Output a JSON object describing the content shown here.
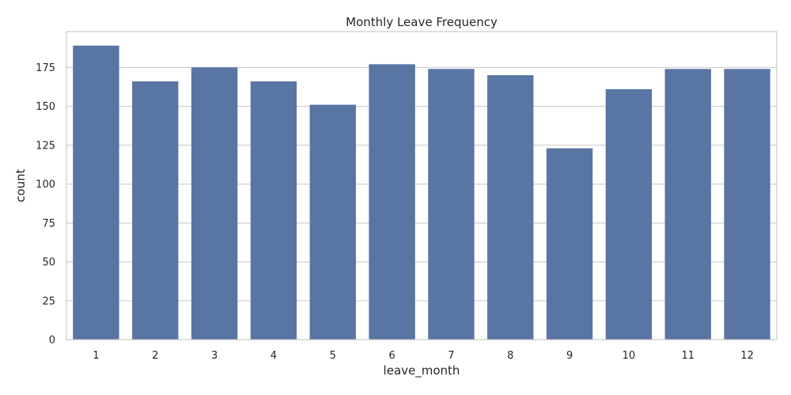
{
  "chart_data": {
    "type": "bar",
    "title": "Monthly Leave Frequency",
    "xlabel": "leave_month",
    "ylabel": "count",
    "categories": [
      "1",
      "2",
      "3",
      "4",
      "5",
      "6",
      "7",
      "8",
      "9",
      "10",
      "11",
      "12"
    ],
    "values": [
      189,
      166,
      175,
      166,
      151,
      177,
      174,
      170,
      123,
      161,
      174,
      174
    ],
    "ylim": [
      0,
      198
    ],
    "yticks": [
      0,
      25,
      50,
      75,
      100,
      125,
      150,
      175
    ],
    "grid": "horizontal",
    "legend": "none",
    "colors": {
      "bar": "#5975a4",
      "grid": "#cccccc",
      "frame": "#cccccc",
      "text": "#262626",
      "background": "#ffffff"
    }
  }
}
